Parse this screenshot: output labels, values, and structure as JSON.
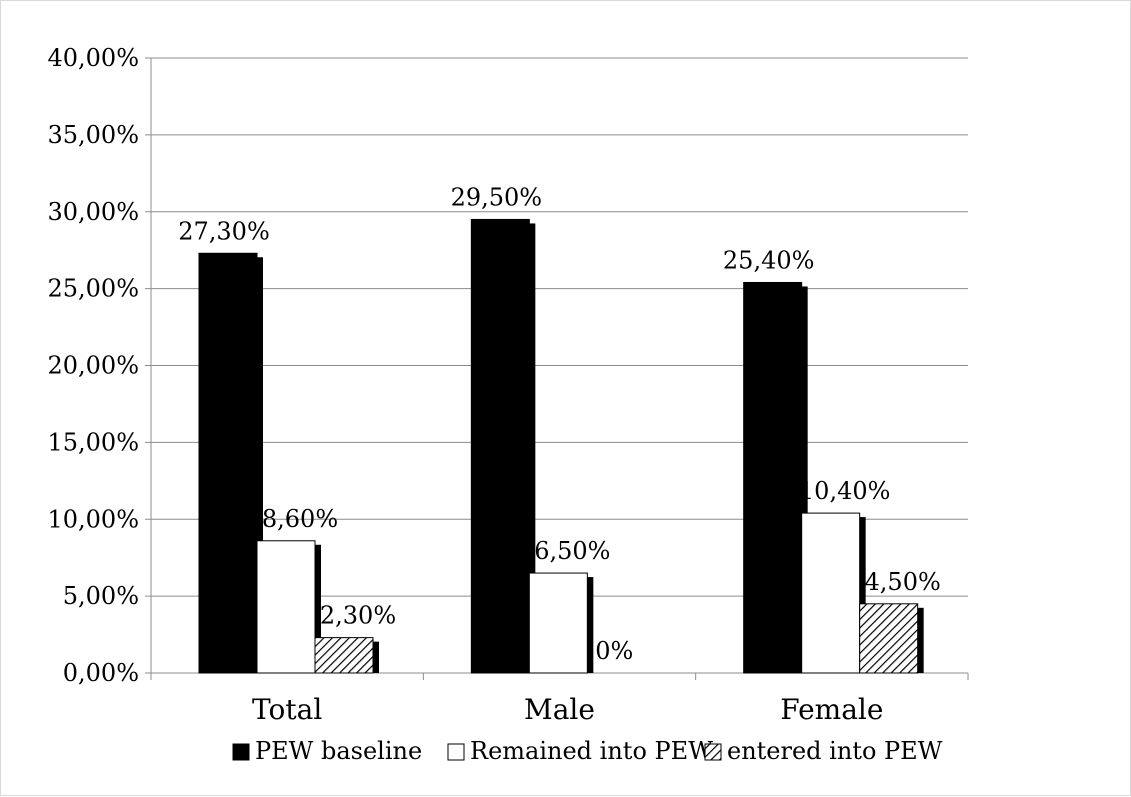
{
  "chart_data": {
    "type": "bar",
    "title": "",
    "xlabel": "",
    "ylabel": "",
    "categories": [
      "Total",
      "Male",
      "Female"
    ],
    "ylim": [
      0,
      40
    ],
    "yticks": [
      0,
      5,
      10,
      15,
      20,
      25,
      30,
      35,
      40
    ],
    "ytick_labels": [
      "0,00%",
      "5,00%",
      "10,00%",
      "15,00%",
      "20,00%",
      "25,00%",
      "30,00%",
      "35,00%",
      "40,00%"
    ],
    "grid": "horizontal",
    "legend_position": "bottom",
    "series": [
      {
        "name": "PEW baseline",
        "values": [
          27.3,
          29.5,
          25.4
        ],
        "labels": [
          "27,30%",
          "29,50%",
          "25,40%"
        ],
        "fill": "solid-black",
        "color": "#000000"
      },
      {
        "name": "Remained into PEW",
        "values": [
          8.6,
          6.5,
          10.4
        ],
        "labels": [
          "8,60%",
          "6,50%",
          "10,40%"
        ],
        "fill": "white",
        "color": "#ffffff"
      },
      {
        "name": "entered into PEW",
        "values": [
          2.3,
          0,
          4.5
        ],
        "labels": [
          "2,30%",
          "0%",
          "4,50%"
        ],
        "fill": "diagonal-hatch",
        "color": "#000000"
      }
    ]
  }
}
